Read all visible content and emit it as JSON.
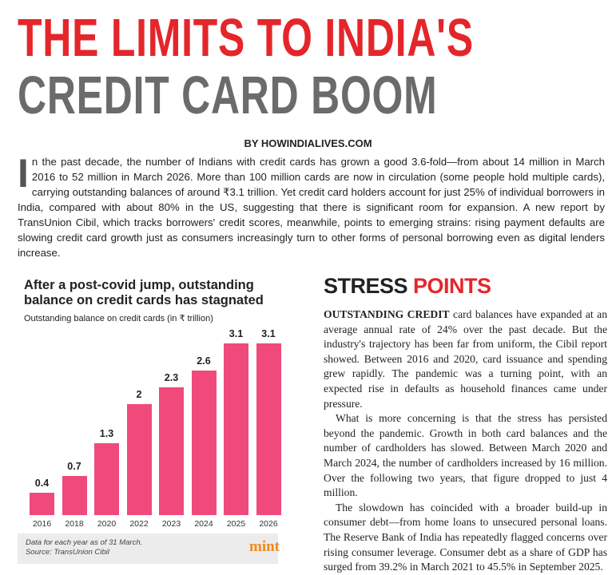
{
  "header": {
    "title_line1": "THE LIMITS TO INDIA'S",
    "title_line2": "CREDIT CARD BOOM",
    "byline": "BY HOWINDIALIVES.COM"
  },
  "intro": {
    "drop_cap": "I",
    "text": "n the past decade, the number of Indians with credit cards has grown a good 3.6-fold—from about 14 million in March 2016 to 52 million in March 2026. More than 100 million cards are now in circulation (some people hold multiple cards), carrying outstanding balances of around ₹3.1 trillion. Yet credit card holders account for just 25% of individual borrowers in India, compared with about 80% in the US, suggesting that there is significant room for expansion. A new report by TransUnion Cibil, which tracks borrowers' credit scores, meanwhile, points to emerging strains: rising payment defaults are slowing credit card growth just as consumers increasingly turn to other forms of personal borrowing even as digital lenders increase."
  },
  "chart_data": {
    "type": "bar",
    "title": "After a post-covid jump, outstanding balance on credit cards has stagnated",
    "subtitle": "Outstanding balance on credit cards (in ₹ trillion)",
    "categories": [
      "2016",
      "2018",
      "2020",
      "2022",
      "2023",
      "2024",
      "2025",
      "2026"
    ],
    "values": [
      0.4,
      0.7,
      1.3,
      2,
      2.3,
      2.6,
      3.1,
      3.1
    ],
    "color": "#ef4a7b",
    "notes": [
      "Data for each year as of 31 March.",
      "Source: TransUnion Cibil"
    ],
    "logo": "mint"
  },
  "article": {
    "heading_part1": "STRESS",
    "heading_part2": "POINTS",
    "lead": "OUTSTANDING CREDIT",
    "paragraphs": [
      "card balances have expanded at an average annual rate of 24% over the past decade. But the industry's trajectory has been far from uniform, the Cibil report showed. Between 2016 and 2020, card issuance and spending grew rapidly. The pandemic was a turning point, with an expected rise in defaults as household finances came under pressure.",
      "What is more concerning is that the stress has persisted beyond the pandemic. Growth in both card balances and the number of cardholders has slowed. Between March 2020 and March 2024, the number of cardholders increased by 16 million. Over the following two years, that figure dropped to just 4 million.",
      "The slowdown has coincided with a broader build-up in consumer debt—from home loans to unsecured personal loans. The Reserve Bank of India has repeatedly flagged concerns over rising consumer leverage. Consumer debt as a share of GDP has surged from 39.2% in March 2021 to 45.5% in September 2025."
    ]
  }
}
